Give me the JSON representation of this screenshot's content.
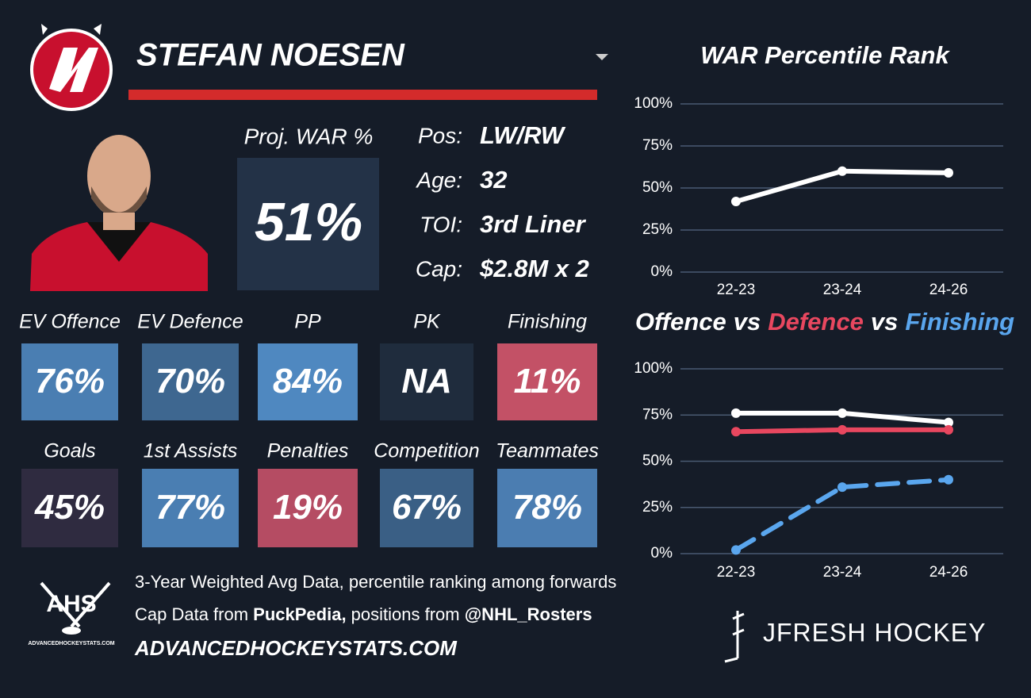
{
  "header": {
    "name": "STEFAN NOESEN"
  },
  "projection": {
    "label": "Proj. WAR %",
    "value": "51%"
  },
  "bio": [
    {
      "label": "Pos:",
      "value": "LW/RW"
    },
    {
      "label": "Age:",
      "value": "32"
    },
    {
      "label": "TOI:",
      "value": "3rd Liner"
    },
    {
      "label": "Cap:",
      "value": "$2.8M x 2"
    }
  ],
  "tiles": [
    {
      "label": "EV Offence",
      "value": "76%",
      "color": "#4a7eb2"
    },
    {
      "label": "EV Defence",
      "value": "70%",
      "color": "#3e6790"
    },
    {
      "label": "PP",
      "value": "84%",
      "color": "#4f88c0"
    },
    {
      "label": "PK",
      "value": "NA",
      "color": "#1f2c3d"
    },
    {
      "label": "Finishing",
      "value": "11%",
      "color": "#c35166"
    },
    {
      "label": "Goals",
      "value": "45%",
      "color": "#2f2b40"
    },
    {
      "label": "1st Assists",
      "value": "77%",
      "color": "#4a7eb2"
    },
    {
      "label": "Penalties",
      "value": "19%",
      "color": "#b54c63"
    },
    {
      "label": "Competition",
      "value": "67%",
      "color": "#3a5f85"
    },
    {
      "label": "Teammates",
      "value": "78%",
      "color": "#4b7db1"
    }
  ],
  "footer": {
    "line1": "3-Year Weighted Avg Data, percentile ranking among forwards",
    "line2": [
      "Cap Data from ",
      "PuckPedia,",
      " positions from ",
      "@NHL_Rosters"
    ],
    "site": "ADVANCEDHOCKEYSTATS.COM"
  },
  "logos": {
    "ahs": "AHS",
    "ahs_url": "ADVANCEDHOCKEYSTATS.COM",
    "jfresh": "JFRESH HOCKEY"
  },
  "chart_data": [
    {
      "type": "line",
      "title": "WAR Percentile Rank",
      "categories": [
        "22-23",
        "23-24",
        "24-26"
      ],
      "series": [
        {
          "color": "#ffffff",
          "values": [
            42,
            60,
            59
          ]
        }
      ],
      "ylim": [
        0,
        100
      ],
      "yticks": [
        {
          "value": 0,
          "label": "0%"
        },
        {
          "value": 25,
          "label": "25%"
        },
        {
          "value": 50,
          "label": "50%"
        },
        {
          "value": 75,
          "label": "75%"
        },
        {
          "value": 100,
          "label": "100%"
        }
      ],
      "grid": true
    },
    {
      "type": "line",
      "title_joiner": "vs",
      "categories": [
        "22-23",
        "23-24",
        "24-26"
      ],
      "series": [
        {
          "name": "Offence",
          "color": "#ffffff",
          "values": [
            76,
            76,
            71
          ]
        },
        {
          "name": "Defence",
          "color": "#e8475f",
          "values": [
            66,
            67,
            67
          ]
        },
        {
          "name": "Finishing",
          "color": "#5aa6ee",
          "dashed": true,
          "values": [
            2,
            36,
            40
          ]
        }
      ],
      "ylim": [
        0,
        100
      ],
      "yticks": [
        {
          "value": 0,
          "label": "0%"
        },
        {
          "value": 25,
          "label": "25%"
        },
        {
          "value": 50,
          "label": "50%"
        },
        {
          "value": 75,
          "label": "75%"
        },
        {
          "value": 100,
          "label": "100%"
        }
      ],
      "grid": true
    }
  ]
}
